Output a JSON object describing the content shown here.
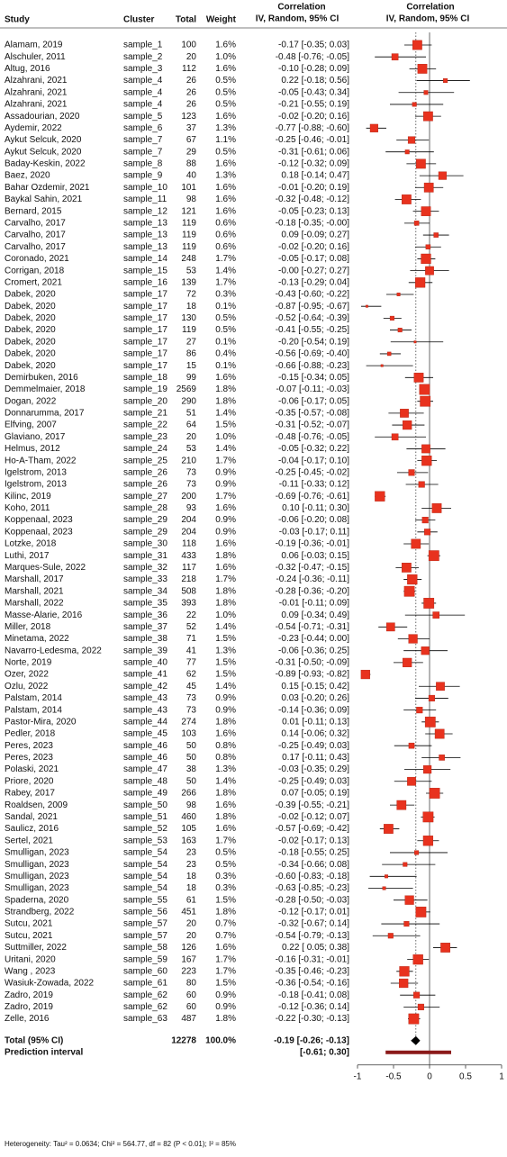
{
  "chart_data": {
    "type": "forest",
    "columns": [
      "Study",
      "Cluster",
      "Total",
      "Weight"
    ],
    "ci_header": [
      "Correlation",
      "IV, Random, 95% CI"
    ],
    "plot_header": [
      "Correlation",
      "IV, Random, 95% CI"
    ],
    "studies": [
      "Alamam, 2019",
      "Alschuler, 2011",
      "Altug, 2016",
      "Alzahrani, 2021",
      "Alzahrani, 2021",
      "Alzahrani, 2021",
      "Assadourian, 2020",
      "Aydemir, 2022",
      "Aykut Selcuk, 2020",
      "Aykut Selcuk, 2020",
      "Baday-Keskin, 2022",
      "Baez, 2020",
      "Bahar Ozdemir, 2021",
      "Baykal Sahin, 2021",
      "Bernard, 2015",
      "Carvalho, 2017",
      "Carvalho, 2017",
      "Carvalho, 2017",
      "Coronado, 2021",
      "Corrigan, 2018",
      "Cromert, 2021",
      "Dabek, 2020",
      "Dabek, 2020",
      "Dabek, 2020",
      "Dabek, 2020",
      "Dabek, 2020",
      "Dabek, 2020",
      "Dabek, 2020",
      "Demirbuken, 2016",
      "Demmelmaier, 2018",
      "Dogan, 2022",
      "Donnarumma, 2017",
      "Elfving, 2007",
      "Glaviano, 2017",
      "Helmus, 2012",
      "Ho-A-Tham, 2022",
      "Igelstrom, 2013",
      "Igelstrom, 2013",
      "Kilinc, 2019",
      "Koho, 2011",
      "Koppenaal, 2023",
      "Koppenaal, 2023",
      "Lotzke, 2018",
      "Luthi, 2017",
      "Marques-Sule, 2022",
      "Marshall, 2017",
      "Marshall, 2021",
      "Marshall, 2022",
      "Masse-Alarie, 2016",
      "Miller, 2018",
      "Minetama, 2022",
      "Navarro-Ledesma, 2022",
      "Norte, 2019",
      "Ozer, 2022",
      "Ozlu, 2022",
      "Palstam, 2014",
      "Palstam, 2014",
      "Pastor-Mira, 2020",
      "Pedler, 2018",
      "Peres, 2023",
      "Peres, 2023",
      "Polaski, 2021",
      "Priore, 2020",
      "Rabey, 2017",
      "Roaldsen, 2009",
      "Sandal, 2021",
      "Saulicz, 2016",
      "Sertel, 2021",
      "Smulligan, 2023",
      "Smulligan, 2023",
      "Smulligan, 2023",
      "Smulligan, 2023",
      "Spaderna, 2020",
      "Strandberg, 2022",
      "Sutcu, 2021",
      "Sutcu, 2021",
      "Suttmiller, 2022",
      "Uritani, 2020",
      "Wang , 2023",
      "Wasiuk-Zowada, 2022",
      "Zadro, 2019",
      "Zadro, 2019",
      "Zelle, 2016"
    ],
    "clusters": [
      "sample_1",
      "sample_2",
      "sample_3",
      "sample_4",
      "sample_4",
      "sample_4",
      "sample_5",
      "sample_6",
      "sample_7",
      "sample_7",
      "sample_8",
      "sample_9",
      "sample_10",
      "sample_11",
      "sample_12",
      "sample_13",
      "sample_13",
      "sample_13",
      "sample_14",
      "sample_15",
      "sample_16",
      "sample_17",
      "sample_17",
      "sample_17",
      "sample_17",
      "sample_17",
      "sample_17",
      "sample_17",
      "sample_18",
      "sample_19",
      "sample_20",
      "sample_21",
      "sample_22",
      "sample_23",
      "sample_24",
      "sample_25",
      "sample_26",
      "sample_26",
      "sample_27",
      "sample_28",
      "sample_29",
      "sample_29",
      "sample_30",
      "sample_31",
      "sample_32",
      "sample_33",
      "sample_34",
      "sample_35",
      "sample_36",
      "sample_37",
      "sample_38",
      "sample_39",
      "sample_40",
      "sample_41",
      "sample_42",
      "sample_43",
      "sample_43",
      "sample_44",
      "sample_45",
      "sample_46",
      "sample_46",
      "sample_47",
      "sample_48",
      "sample_49",
      "sample_50",
      "sample_51",
      "sample_52",
      "sample_53",
      "sample_54",
      "sample_54",
      "sample_54",
      "sample_54",
      "sample_55",
      "sample_56",
      "sample_57",
      "sample_57",
      "sample_58",
      "sample_59",
      "sample_60",
      "sample_61",
      "sample_62",
      "sample_62",
      "sample_63"
    ],
    "totals": [
      100,
      20,
      112,
      26,
      26,
      26,
      123,
      37,
      67,
      29,
      88,
      40,
      101,
      98,
      121,
      119,
      119,
      119,
      248,
      53,
      139,
      72,
      18,
      130,
      119,
      27,
      86,
      15,
      99,
      2569,
      290,
      51,
      64,
      20,
      53,
      210,
      73,
      73,
      200,
      93,
      204,
      204,
      118,
      433,
      117,
      218,
      508,
      393,
      22,
      52,
      71,
      41,
      77,
      62,
      45,
      73,
      73,
      274,
      103,
      50,
      50,
      38,
      50,
      266,
      98,
      460,
      105,
      163,
      23,
      23,
      18,
      18,
      61,
      451,
      20,
      20,
      126,
      167,
      223,
      80,
      60,
      60,
      487
    ],
    "weights": [
      1.6,
      1.0,
      1.6,
      0.5,
      0.5,
      0.5,
      1.6,
      1.3,
      1.1,
      0.5,
      1.6,
      1.3,
      1.6,
      1.6,
      1.6,
      0.6,
      0.6,
      0.6,
      1.7,
      1.4,
      1.7,
      0.3,
      0.1,
      0.5,
      0.5,
      0.1,
      0.4,
      0.1,
      1.6,
      1.8,
      1.8,
      1.4,
      1.5,
      1.0,
      1.4,
      1.7,
      0.9,
      0.9,
      1.7,
      1.6,
      0.9,
      0.9,
      1.6,
      1.8,
      1.6,
      1.7,
      1.8,
      1.8,
      1.0,
      1.4,
      1.5,
      1.3,
      1.5,
      1.5,
      1.4,
      0.9,
      0.9,
      1.8,
      1.6,
      0.8,
      0.8,
      1.3,
      1.4,
      1.8,
      1.6,
      1.8,
      1.6,
      1.7,
      0.5,
      0.5,
      0.3,
      0.3,
      1.5,
      1.8,
      0.7,
      0.7,
      1.6,
      1.7,
      1.7,
      1.5,
      0.9,
      0.9,
      1.8
    ],
    "weight_labels": [
      "1.6%",
      "1.0%",
      "1.6%",
      "0.5%",
      "0.5%",
      "0.5%",
      "1.6%",
      "1.3%",
      "1.1%",
      "0.5%",
      "1.6%",
      "1.3%",
      "1.6%",
      "1.6%",
      "1.6%",
      "0.6%",
      "0.6%",
      "0.6%",
      "1.7%",
      "1.4%",
      "1.7%",
      "0.3%",
      "0.1%",
      "0.5%",
      "0.5%",
      "0.1%",
      "0.4%",
      "0.1%",
      "1.6%",
      "1.8%",
      "1.8%",
      "1.4%",
      "1.5%",
      "1.0%",
      "1.4%",
      "1.7%",
      "0.9%",
      "0.9%",
      "1.7%",
      "1.6%",
      "0.9%",
      "0.9%",
      "1.6%",
      "1.8%",
      "1.6%",
      "1.7%",
      "1.8%",
      "1.8%",
      "1.0%",
      "1.4%",
      "1.5%",
      "1.3%",
      "1.5%",
      "1.5%",
      "1.4%",
      "0.9%",
      "0.9%",
      "1.8%",
      "1.6%",
      "0.8%",
      "0.8%",
      "1.3%",
      "1.4%",
      "1.8%",
      "1.6%",
      "1.8%",
      "1.6%",
      "1.7%",
      "0.5%",
      "0.5%",
      "0.3%",
      "0.3%",
      "1.5%",
      "1.8%",
      "0.7%",
      "0.7%",
      "1.6%",
      "1.7%",
      "1.7%",
      "1.5%",
      "0.9%",
      "0.9%",
      "1.8%"
    ],
    "estimates": [
      -0.17,
      -0.48,
      -0.1,
      0.22,
      -0.05,
      -0.21,
      -0.02,
      -0.77,
      -0.25,
      -0.31,
      -0.12,
      0.18,
      -0.01,
      -0.32,
      -0.05,
      -0.18,
      0.09,
      -0.02,
      -0.05,
      0.0,
      -0.13,
      -0.43,
      -0.87,
      -0.52,
      -0.41,
      -0.2,
      -0.56,
      -0.66,
      -0.15,
      -0.07,
      -0.06,
      -0.35,
      -0.31,
      -0.48,
      -0.05,
      -0.04,
      -0.25,
      -0.11,
      -0.69,
      0.1,
      -0.06,
      -0.03,
      -0.19,
      0.06,
      -0.32,
      -0.24,
      -0.28,
      -0.01,
      0.09,
      -0.54,
      -0.23,
      -0.06,
      -0.31,
      -0.89,
      0.15,
      0.03,
      -0.14,
      0.01,
      0.14,
      -0.25,
      0.17,
      -0.03,
      -0.25,
      0.07,
      -0.39,
      -0.02,
      -0.57,
      -0.02,
      -0.18,
      -0.34,
      -0.6,
      -0.63,
      -0.28,
      -0.12,
      -0.32,
      -0.54,
      0.22,
      -0.16,
      -0.35,
      -0.36,
      -0.18,
      -0.12,
      -0.22
    ],
    "lower": [
      -0.35,
      -0.76,
      -0.28,
      -0.18,
      -0.43,
      -0.55,
      -0.2,
      -0.88,
      -0.46,
      -0.61,
      -0.32,
      -0.14,
      -0.2,
      -0.48,
      -0.23,
      -0.35,
      -0.09,
      -0.2,
      -0.17,
      -0.27,
      -0.29,
      -0.6,
      -0.95,
      -0.64,
      -0.55,
      -0.54,
      -0.69,
      -0.88,
      -0.34,
      -0.11,
      -0.17,
      -0.57,
      -0.52,
      -0.76,
      -0.32,
      -0.17,
      -0.45,
      -0.33,
      -0.76,
      -0.11,
      -0.2,
      -0.17,
      -0.36,
      -0.03,
      -0.47,
      -0.36,
      -0.36,
      -0.11,
      -0.34,
      -0.71,
      -0.44,
      -0.36,
      -0.5,
      -0.93,
      -0.15,
      -0.2,
      -0.36,
      -0.11,
      -0.06,
      -0.49,
      -0.11,
      -0.35,
      -0.49,
      -0.05,
      -0.55,
      -0.12,
      -0.69,
      -0.17,
      -0.55,
      -0.66,
      -0.83,
      -0.85,
      -0.5,
      -0.17,
      -0.67,
      -0.79,
      0.05,
      -0.31,
      -0.46,
      -0.54,
      -0.41,
      -0.36,
      -0.3
    ],
    "upper": [
      0.03,
      -0.05,
      0.09,
      0.56,
      0.34,
      0.19,
      0.16,
      -0.6,
      -0.01,
      0.06,
      0.09,
      0.47,
      0.19,
      -0.12,
      0.13,
      0.0,
      0.27,
      0.16,
      0.08,
      0.27,
      0.04,
      -0.22,
      -0.67,
      -0.39,
      -0.25,
      0.19,
      -0.4,
      -0.23,
      0.05,
      -0.03,
      0.05,
      -0.08,
      -0.07,
      -0.05,
      0.22,
      0.1,
      -0.02,
      0.12,
      -0.61,
      0.3,
      0.08,
      0.11,
      -0.01,
      0.15,
      -0.15,
      -0.11,
      -0.2,
      0.09,
      0.49,
      -0.31,
      0.0,
      0.25,
      -0.09,
      -0.82,
      0.42,
      0.26,
      0.09,
      0.13,
      0.32,
      0.03,
      0.43,
      0.29,
      0.03,
      0.19,
      -0.21,
      0.07,
      -0.42,
      0.13,
      0.25,
      0.08,
      -0.18,
      -0.23,
      -0.03,
      0.01,
      0.14,
      -0.13,
      0.38,
      -0.01,
      -0.23,
      -0.16,
      0.08,
      0.14,
      -0.13
    ],
    "ci_labels": [
      "-0.17 [-0.35; 0.03]",
      "-0.48 [-0.76; -0.05]",
      "-0.10 [-0.28; 0.09]",
      "0.22 [-0.18; 0.56]",
      "-0.05 [-0.43; 0.34]",
      "-0.21 [-0.55; 0.19]",
      "-0.02 [-0.20; 0.16]",
      "-0.77 [-0.88; -0.60]",
      "-0.25 [-0.46; -0.01]",
      "-0.31 [-0.61; 0.06]",
      "-0.12 [-0.32; 0.09]",
      "0.18 [-0.14; 0.47]",
      "-0.01 [-0.20; 0.19]",
      "-0.32 [-0.48; -0.12]",
      "-0.05 [-0.23; 0.13]",
      "-0.18 [-0.35; -0.00]",
      "0.09 [-0.09; 0.27]",
      "-0.02 [-0.20; 0.16]",
      "-0.05 [-0.17; 0.08]",
      "-0.00 [-0.27; 0.27]",
      "-0.13 [-0.29; 0.04]",
      "-0.43 [-0.60; -0.22]",
      "-0.87 [-0.95; -0.67]",
      "-0.52 [-0.64; -0.39]",
      "-0.41 [-0.55; -0.25]",
      "-0.20 [-0.54; 0.19]",
      "-0.56 [-0.69; -0.40]",
      "-0.66 [-0.88; -0.23]",
      "-0.15 [-0.34; 0.05]",
      "-0.07 [-0.11; -0.03]",
      "-0.06 [-0.17; 0.05]",
      "-0.35 [-0.57; -0.08]",
      "-0.31 [-0.52; -0.07]",
      "-0.48 [-0.76; -0.05]",
      "-0.05 [-0.32; 0.22]",
      "-0.04 [-0.17; 0.10]",
      "-0.25 [-0.45; -0.02]",
      "-0.11 [-0.33; 0.12]",
      "-0.69 [-0.76; -0.61]",
      "0.10 [-0.11; 0.30]",
      "-0.06 [-0.20; 0.08]",
      "-0.03 [-0.17; 0.11]",
      "-0.19 [-0.36; -0.01]",
      "0.06 [-0.03; 0.15]",
      "-0.32 [-0.47; -0.15]",
      "-0.24 [-0.36; -0.11]",
      "-0.28 [-0.36; -0.20]",
      "-0.01 [-0.11; 0.09]",
      "0.09 [-0.34; 0.49]",
      "-0.54 [-0.71; -0.31]",
      "-0.23 [-0.44; 0.00]",
      "-0.06 [-0.36; 0.25]",
      "-0.31 [-0.50; -0.09]",
      "-0.89 [-0.93; -0.82]",
      "0.15 [-0.15; 0.42]",
      "0.03 [-0.20; 0.26]",
      "-0.14 [-0.36; 0.09]",
      "0.01 [-0.11; 0.13]",
      "0.14 [-0.06; 0.32]",
      "-0.25 [-0.49; 0.03]",
      "0.17 [-0.11; 0.43]",
      "-0.03 [-0.35; 0.29]",
      "-0.25 [-0.49; 0.03]",
      "0.07 [-0.05; 0.19]",
      "-0.39 [-0.55; -0.21]",
      "-0.02 [-0.12; 0.07]",
      "-0.57 [-0.69; -0.42]",
      "-0.02 [-0.17; 0.13]",
      "-0.18 [-0.55; 0.25]",
      "-0.34 [-0.66; 0.08]",
      "-0.60 [-0.83; -0.18]",
      "-0.63 [-0.85; -0.23]",
      "-0.28 [-0.50; -0.03]",
      "-0.12 [-0.17; 0.01]",
      "-0.32 [-0.67; 0.14]",
      "-0.54 [-0.79; -0.13]",
      "0.22 [ 0.05; 0.38]",
      "-0.16 [-0.31; -0.01]",
      "-0.35 [-0.46; -0.23]",
      "-0.36 [-0.54; -0.16]",
      "-0.18 [-0.41; 0.08]",
      "-0.12 [-0.36; 0.14]",
      "-0.22 [-0.30; -0.13]"
    ],
    "total": {
      "label": "Total (95% CI)",
      "total": 12278,
      "weight": 100.0,
      "weight_label": "100.0%",
      "estimate": -0.19,
      "lower": -0.26,
      "upper": -0.13,
      "ci_label": "-0.19 [-0.26; -0.13]"
    },
    "prediction": {
      "label": "Prediction interval",
      "lower": -0.61,
      "upper": 0.3,
      "ci_label": "[-0.61; 0.30]",
      "color": "#8b1a1a"
    },
    "heterogeneity": "Heterogeneity: Tau² = 0.0634; Chi² = 564.77, df = 82 (P < 0.01); I² = 85%",
    "xlim": [
      -1,
      1
    ],
    "xticks": [
      -1,
      -0.5,
      0,
      0.5,
      1
    ],
    "color": "#e8321e",
    "line_color": "#000000"
  }
}
